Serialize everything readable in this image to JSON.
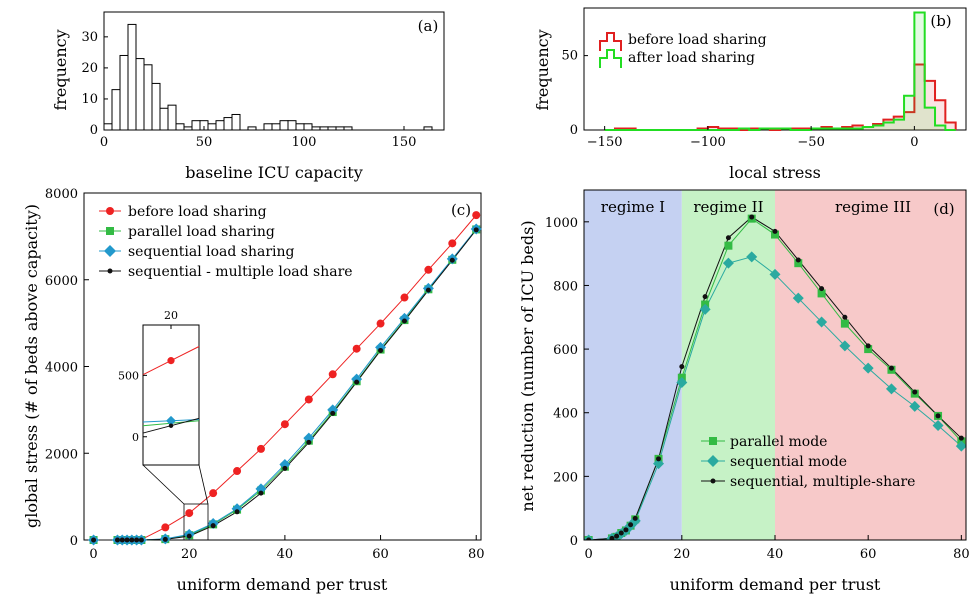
{
  "chart_data": [
    {
      "id": "a",
      "type": "histogram",
      "panel_label": "(a)",
      "xlabel": "baseline ICU capacity",
      "ylabel": "frequency",
      "xlim": [
        0,
        170
      ],
      "ylim": [
        0,
        38
      ],
      "xticks": [
        "0",
        "50",
        "100",
        "150"
      ],
      "yticks": [
        "0",
        "10",
        "20",
        "30"
      ],
      "bin_width": 4,
      "bin_starts": [
        0,
        4,
        8,
        12,
        16,
        20,
        24,
        28,
        32,
        36,
        40,
        44,
        48,
        52,
        56,
        60,
        64,
        68,
        72,
        76,
        80,
        84,
        88,
        92,
        96,
        100,
        104,
        108,
        112,
        116,
        120,
        124,
        128,
        132,
        136,
        140,
        144,
        148,
        152,
        156,
        160,
        164
      ],
      "counts": [
        2,
        13,
        24,
        34,
        23,
        21,
        15,
        7,
        8,
        2,
        1,
        3,
        3,
        2,
        3,
        4,
        5,
        0,
        1,
        0,
        2,
        2,
        3,
        3,
        2,
        2,
        1,
        1,
        1,
        1,
        1,
        0,
        0,
        0,
        0,
        0,
        0,
        0,
        0,
        0,
        1,
        0
      ],
      "color": "#000000"
    },
    {
      "id": "b",
      "type": "histogram",
      "panel_label": "(b)",
      "xlabel": "local stress",
      "ylabel": "frequency",
      "xlim": [
        -160,
        25
      ],
      "ylim": [
        0,
        82
      ],
      "xticks": [
        "−150",
        "−100",
        "−50",
        "0"
      ],
      "yticks": [
        "0",
        "50"
      ],
      "bin_width": 5,
      "bin_starts": [
        -150,
        -145,
        -140,
        -135,
        -130,
        -125,
        -120,
        -115,
        -110,
        -105,
        -100,
        -95,
        -90,
        -85,
        -80,
        -75,
        -70,
        -65,
        -60,
        -55,
        -50,
        -45,
        -40,
        -35,
        -30,
        -25,
        -20,
        -15,
        -10,
        -5,
        0,
        5,
        10,
        15
      ],
      "series": [
        {
          "name": "before load sharing",
          "color": "#e02020",
          "counts": [
            0,
            1,
            1,
            0,
            0,
            0,
            0,
            0,
            0,
            1,
            2,
            1,
            1,
            0,
            1,
            1,
            0,
            1,
            1,
            1,
            1,
            2,
            1,
            2,
            3,
            2,
            4,
            7,
            9,
            12,
            44,
            33,
            20,
            5
          ]
        },
        {
          "name": "after load sharing",
          "color": "#22dd22",
          "counts": [
            0,
            0,
            0,
            0,
            0,
            0,
            0,
            0,
            0,
            0,
            0,
            0,
            0,
            1,
            0,
            1,
            1,
            1,
            0,
            0,
            1,
            1,
            1,
            1,
            1,
            2,
            3,
            5,
            7,
            23,
            79,
            15,
            3,
            0
          ]
        }
      ]
    },
    {
      "id": "c",
      "type": "line",
      "panel_label": "(c)",
      "xlabel": "uniform demand per trust",
      "ylabel": "global stress (# of beds above capacity)",
      "xlim": [
        -2,
        81
      ],
      "ylim": [
        0,
        8000
      ],
      "xticks": [
        "0",
        "20",
        "40",
        "60",
        "80"
      ],
      "yticks": [
        "0",
        "2000",
        "4000",
        "6000",
        "8000"
      ],
      "x": [
        0,
        5,
        6,
        7,
        8,
        9,
        10,
        15,
        20,
        25,
        30,
        35,
        40,
        45,
        50,
        55,
        60,
        65,
        70,
        75,
        80
      ],
      "series": [
        {
          "name": "before load sharing",
          "color": "#ee2222",
          "marker": "circle",
          "values": [
            0,
            0,
            0,
            0,
            0,
            5,
            10,
            290,
            620,
            1080,
            1590,
            2100,
            2670,
            3240,
            3820,
            4410,
            4990,
            5590,
            6230,
            6840,
            7490
          ]
        },
        {
          "name": "parallel load sharing",
          "color": "#33bb44",
          "marker": "square",
          "values": [
            0,
            0,
            0,
            0,
            0,
            0,
            0,
            20,
            110,
            360,
            700,
            1140,
            1690,
            2290,
            2950,
            3660,
            4390,
            5070,
            5780,
            6460,
            7160
          ]
        },
        {
          "name": "sequential load sharing",
          "color": "#2299cc",
          "marker": "diamond",
          "values": [
            0,
            0,
            0,
            0,
            0,
            0,
            0,
            25,
            130,
            380,
            720,
            1180,
            1740,
            2350,
            3000,
            3710,
            4440,
            5110,
            5800,
            6480,
            7170
          ]
        },
        {
          "name": "sequential - multiple load share",
          "color": "#111111",
          "marker": "dot",
          "values": [
            0,
            0,
            0,
            0,
            0,
            0,
            0,
            15,
            90,
            330,
            650,
            1080,
            1650,
            2250,
            2920,
            3640,
            4370,
            5050,
            5760,
            6450,
            7150
          ]
        }
      ],
      "inset": {
        "xtick": "20",
        "yticks": [
          "0",
          "500"
        ],
        "xlim": [
          17.5,
          22.5
        ],
        "ylim": [
          -230,
          910
        ],
        "x": [
          15,
          20,
          25
        ],
        "series_values": [
          [
            390,
            620,
            850
          ],
          [
            70,
            110,
            150
          ],
          [
            110,
            130,
            150
          ],
          [
            -30,
            90,
            210
          ]
        ]
      }
    },
    {
      "id": "d",
      "type": "line",
      "panel_label": "(d)",
      "xlabel": "uniform demand per trust",
      "ylabel": "net reduction (number of ICU beds)",
      "xlim": [
        -1,
        81
      ],
      "ylim": [
        0,
        1100
      ],
      "xticks": [
        "0",
        "20",
        "40",
        "60",
        "80"
      ],
      "yticks": [
        "0",
        "200",
        "400",
        "600",
        "800",
        "1000"
      ],
      "regimes": [
        {
          "label": "regime I",
          "x0": -1,
          "x1": 20,
          "color": "#c5d1f2"
        },
        {
          "label": "regime II",
          "x0": 20,
          "x1": 40,
          "color": "#c6f2c6"
        },
        {
          "label": "regime III",
          "x0": 40,
          "x1": 81,
          "color": "#f7c9c9"
        }
      ],
      "x": [
        0,
        5,
        6,
        7,
        8,
        9,
        10,
        15,
        20,
        25,
        30,
        35,
        40,
        45,
        50,
        55,
        60,
        65,
        70,
        75,
        80
      ],
      "series": [
        {
          "name": "parallel mode",
          "color": "#33bb44",
          "marker": "square",
          "values": [
            0,
            5,
            10,
            22,
            30,
            45,
            65,
            255,
            510,
            740,
            925,
            1010,
            960,
            870,
            775,
            680,
            600,
            535,
            460,
            390,
            310
          ]
        },
        {
          "name": "sequential mode",
          "color": "#2aaaa0",
          "marker": "diamond",
          "values": [
            0,
            5,
            10,
            20,
            30,
            45,
            60,
            240,
            495,
            725,
            870,
            890,
            835,
            760,
            685,
            610,
            540,
            475,
            420,
            360,
            295
          ]
        },
        {
          "name": "sequential, multiple-share",
          "color": "#111111",
          "marker": "dot",
          "values": [
            0,
            5,
            12,
            22,
            32,
            48,
            68,
            255,
            545,
            765,
            950,
            1015,
            970,
            880,
            790,
            700,
            610,
            540,
            465,
            390,
            320
          ]
        }
      ]
    }
  ]
}
